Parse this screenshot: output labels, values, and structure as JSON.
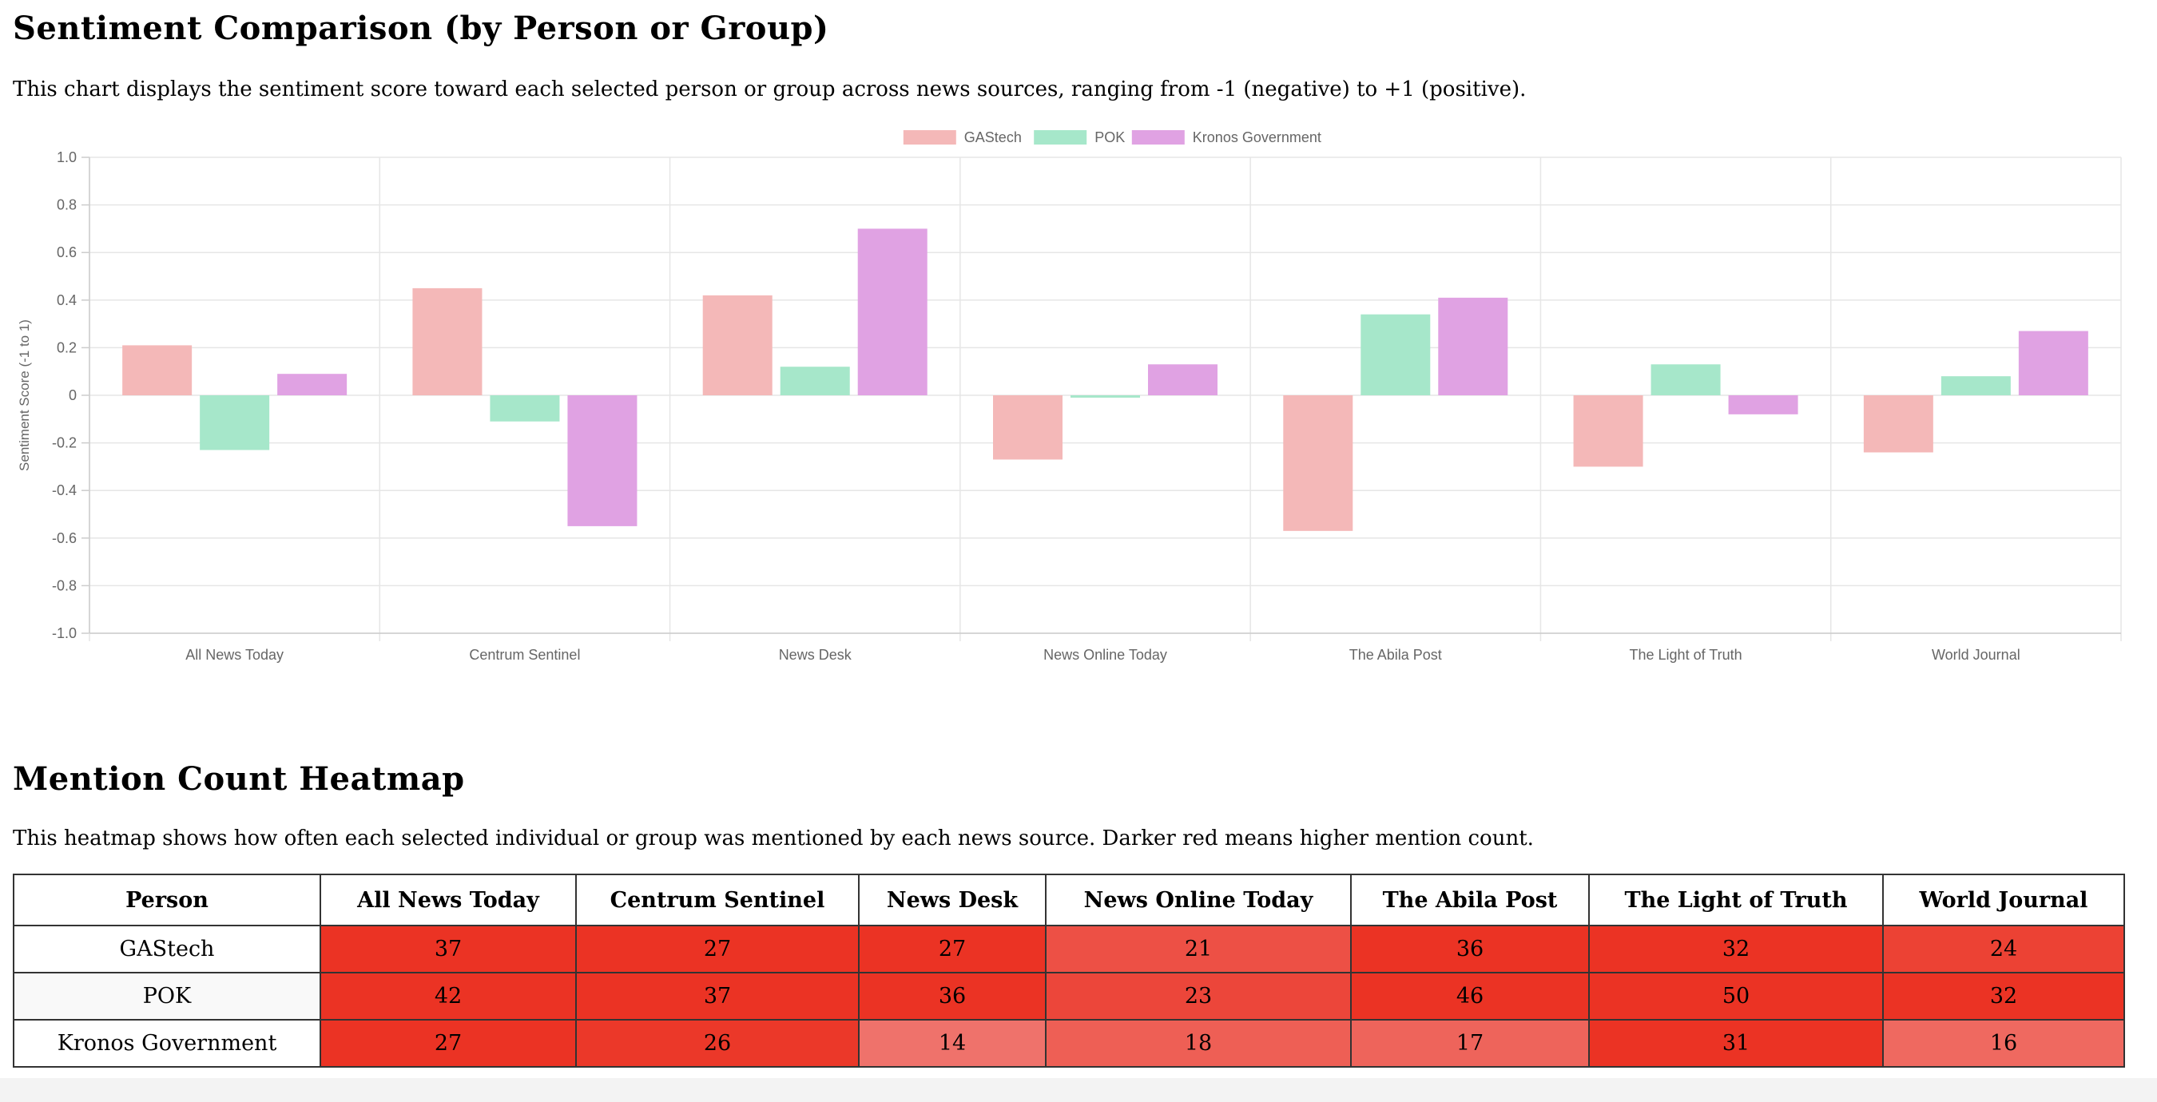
{
  "sentiment_section": {
    "title": "Sentiment Comparison (by Person or Group)",
    "description": "This chart displays the sentiment score toward each selected person or group across news sources, ranging from -1 (negative) to +1 (positive)."
  },
  "heatmap_section": {
    "title": "Mention Count Heatmap",
    "description": "This heatmap shows how often each selected individual or group was mentioned by each news source. Darker red means higher mention count."
  },
  "chart_data": [
    {
      "type": "bar",
      "ylabel": "Sentiment Score (-1 to 1)",
      "ylim": [
        -1,
        1
      ],
      "yticks": [
        "1.0",
        "0.8",
        "0.6",
        "0.4",
        "0.2",
        "0",
        "-0.2",
        "-0.4",
        "-0.6",
        "-0.8",
        "-1.0"
      ],
      "legend_position": "top-center",
      "grid": true,
      "categories": [
        "All News Today",
        "Centrum Sentinel",
        "News Desk",
        "News Online Today",
        "The Abila Post",
        "The Light of Truth",
        "World Journal"
      ],
      "series": [
        {
          "name": "GAStech",
          "color": "#f4b8b8",
          "values": [
            0.21,
            0.45,
            0.42,
            -0.27,
            -0.57,
            -0.3,
            -0.24
          ]
        },
        {
          "name": "POK",
          "color": "#a6e7ca",
          "values": [
            -0.23,
            -0.11,
            0.12,
            -0.01,
            0.34,
            0.13,
            0.08
          ]
        },
        {
          "name": "Kronos Government",
          "color": "#e0a2e3",
          "values": [
            0.09,
            -0.55,
            0.7,
            0.13,
            0.41,
            -0.08,
            0.27
          ]
        }
      ]
    },
    {
      "type": "heatmap",
      "corner_header": "Person",
      "columns": [
        "All News Today",
        "Centrum Sentinel",
        "News Desk",
        "News Online Today",
        "The Abila Post",
        "The Light of Truth",
        "World Journal"
      ],
      "rows": [
        {
          "label": "GAStech",
          "values": [
            37,
            27,
            27,
            21,
            36,
            32,
            24
          ]
        },
        {
          "label": "POK",
          "values": [
            42,
            37,
            36,
            23,
            46,
            50,
            32
          ]
        },
        {
          "label": "Kronos Government",
          "values": [
            27,
            26,
            14,
            18,
            17,
            31,
            16
          ]
        }
      ]
    }
  ]
}
